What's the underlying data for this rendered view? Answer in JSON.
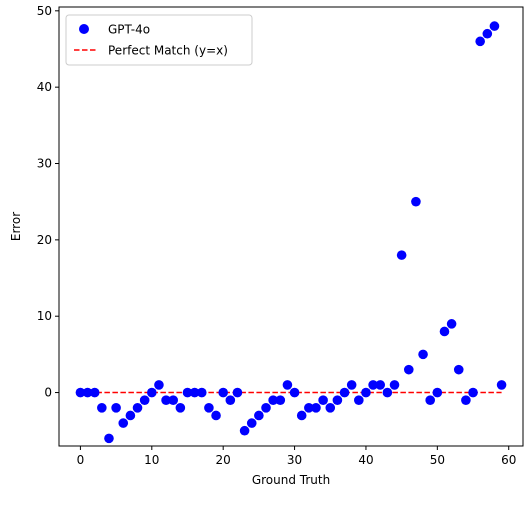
{
  "chart_data": {
    "type": "scatter",
    "xlabel": "Ground Truth",
    "ylabel": "Error",
    "xlim": [
      -3,
      62
    ],
    "ylim": [
      -7,
      50.5
    ],
    "xticks": [
      0,
      10,
      20,
      30,
      40,
      50,
      60
    ],
    "yticks": [
      0,
      10,
      20,
      30,
      40,
      50
    ],
    "grid": false,
    "legend_position": "top-left",
    "series": [
      {
        "name": "GPT-4o",
        "kind": "scatter",
        "color": "#0000ff",
        "x": [
          0,
          1,
          2,
          3,
          4,
          5,
          6,
          7,
          8,
          9,
          10,
          11,
          12,
          13,
          14,
          15,
          16,
          17,
          18,
          19,
          20,
          21,
          22,
          23,
          24,
          25,
          26,
          27,
          28,
          29,
          30,
          31,
          32,
          33,
          34,
          35,
          36,
          37,
          38,
          39,
          40,
          41,
          42,
          43,
          44,
          45,
          46,
          47,
          48,
          49,
          50,
          51,
          52,
          53,
          54,
          55,
          56,
          57,
          58,
          59
        ],
        "y": [
          0,
          0,
          0,
          -2,
          -6,
          -2,
          -4,
          -3,
          -2,
          -1,
          0,
          1,
          -1,
          -1,
          -2,
          0,
          0,
          0,
          -2,
          -3,
          0,
          -1,
          0,
          -5,
          -4,
          -3,
          -2,
          -1,
          -1,
          1,
          0,
          -3,
          -2,
          -2,
          -1,
          -2,
          -1,
          0,
          1,
          -1,
          0,
          1,
          1,
          0,
          1,
          18,
          3,
          25,
          5,
          -1,
          0,
          8,
          9,
          3,
          -1,
          0,
          46,
          47,
          48,
          1
        ]
      },
      {
        "name": "Perfect Match (y=x)",
        "kind": "dashed-line",
        "color": "#ff0000",
        "x": [
          0,
          59
        ],
        "y": [
          0,
          0
        ]
      }
    ]
  }
}
